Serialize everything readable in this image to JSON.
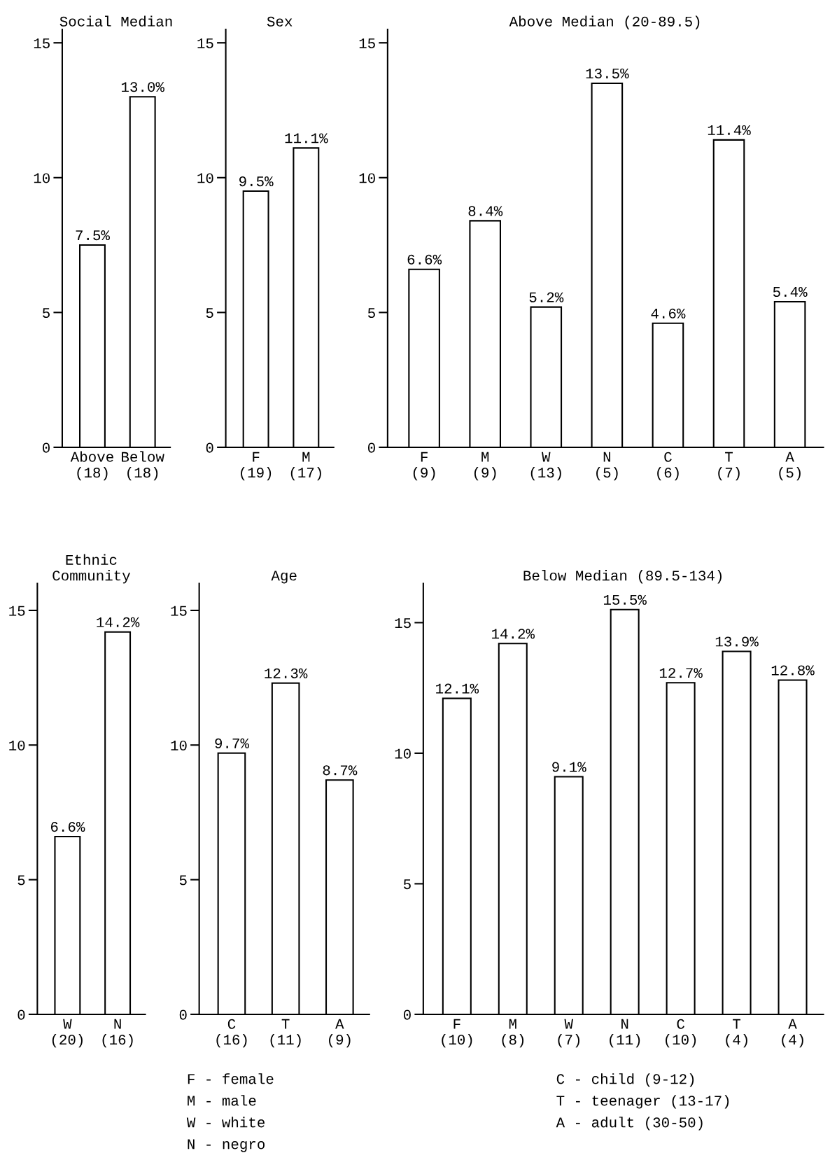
{
  "chart_data": [
    {
      "type": "bar",
      "title": "Social Median",
      "categories": [
        "Above\n(18)",
        "Below\n(18)"
      ],
      "values": [
        7.5,
        13.0
      ],
      "value_labels": [
        "7.5%",
        "13.0%"
      ],
      "color": "#ffffff",
      "ylim": [
        0,
        15.5
      ],
      "yticks": [
        0,
        5,
        10,
        15
      ]
    },
    {
      "type": "bar",
      "title": "Sex",
      "categories": [
        "F\n(19)",
        "M\n(17)"
      ],
      "values": [
        9.5,
        11.1
      ],
      "value_labels": [
        "9.5%",
        "11.1%"
      ],
      "color": "#ffffff",
      "ylim": [
        0,
        15.5
      ],
      "yticks": [
        0,
        5,
        10,
        15
      ]
    },
    {
      "type": "bar",
      "title": "Above Median (20-89.5)",
      "categories": [
        "F\n(9)",
        "M\n(9)",
        "W\n(13)",
        "N\n(5)",
        "C\n(6)",
        "T\n(7)",
        "A\n(5)"
      ],
      "values": [
        6.6,
        8.4,
        5.2,
        13.5,
        4.6,
        11.4,
        5.4
      ],
      "value_labels": [
        "6.6%",
        "8.4%",
        "5.2%",
        "13.5%",
        "4.6%",
        "11.4%",
        "5.4%"
      ],
      "color": "#ffffff",
      "ylim": [
        0,
        15.5
      ],
      "yticks": [
        0,
        5,
        10,
        15
      ]
    },
    {
      "type": "bar",
      "title": "Ethnic\nCommunity",
      "categories": [
        "W\n(20)",
        "N\n(16)"
      ],
      "values": [
        6.6,
        14.2
      ],
      "value_labels": [
        "6.6%",
        "14.2%"
      ],
      "color": "#ffffff",
      "ylim": [
        0,
        16
      ],
      "yticks": [
        0,
        5,
        10,
        15
      ]
    },
    {
      "type": "bar",
      "title": "Age",
      "categories": [
        "C\n(16)",
        "T\n(11)",
        "A\n(9)"
      ],
      "values": [
        9.7,
        12.3,
        8.7
      ],
      "value_labels": [
        "9.7%",
        "12.3%",
        "8.7%"
      ],
      "color": "#ffffff",
      "ylim": [
        0,
        16
      ],
      "yticks": [
        0,
        5,
        10,
        15
      ]
    },
    {
      "type": "bar",
      "title": "Below Median (89.5-134)",
      "categories": [
        "F\n(10)",
        "M\n(8)",
        "W\n(7)",
        "N\n(11)",
        "C\n(10)",
        "T\n(4)",
        "A\n(4)"
      ],
      "values": [
        12.1,
        14.2,
        9.1,
        15.5,
        12.7,
        13.9,
        12.8
      ],
      "value_labels": [
        "12.1%",
        "14.2%",
        "9.1%",
        "15.5%",
        "12.7%",
        "13.9%",
        "12.8%"
      ],
      "color": "#ffffff",
      "ylim": [
        0,
        16.5
      ],
      "yticks": [
        0,
        5,
        10,
        15
      ],
      "annotations": [
        "F - female",
        "M - male",
        "W - white",
        "N - negro",
        "C - child (9-12)",
        "T - teenager (13-17)",
        "A - adult (30-50)"
      ]
    }
  ]
}
